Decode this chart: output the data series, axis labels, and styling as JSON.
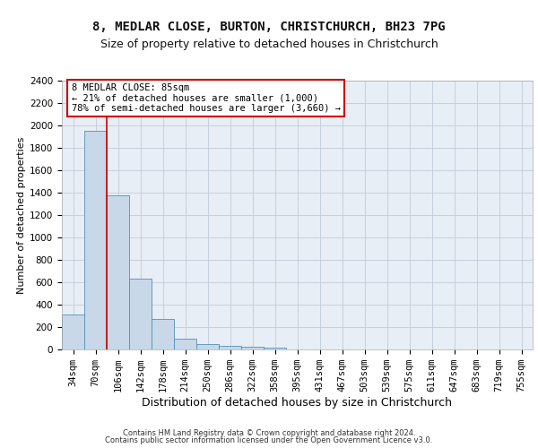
{
  "title1": "8, MEDLAR CLOSE, BURTON, CHRISTCHURCH, BH23 7PG",
  "title2": "Size of property relative to detached houses in Christchurch",
  "xlabel": "Distribution of detached houses by size in Christchurch",
  "ylabel": "Number of detached properties",
  "footer1": "Contains HM Land Registry data © Crown copyright and database right 2024.",
  "footer2": "Contains public sector information licensed under the Open Government Licence v3.0.",
  "bar_labels": [
    "34sqm",
    "70sqm",
    "106sqm",
    "142sqm",
    "178sqm",
    "214sqm",
    "250sqm",
    "286sqm",
    "322sqm",
    "358sqm",
    "395sqm",
    "431sqm",
    "467sqm",
    "503sqm",
    "539sqm",
    "575sqm",
    "611sqm",
    "647sqm",
    "683sqm",
    "719sqm",
    "755sqm"
  ],
  "bar_values": [
    315,
    1950,
    1380,
    630,
    270,
    95,
    47,
    30,
    25,
    20,
    0,
    0,
    0,
    0,
    0,
    0,
    0,
    0,
    0,
    0,
    0
  ],
  "bar_color": "#c8d8e8",
  "bar_edge_color": "#5090b8",
  "bar_edge_width": 0.6,
  "red_line_x": 1.5,
  "annotation_line1": "8 MEDLAR CLOSE: 85sqm",
  "annotation_line2": "← 21% of detached houses are smaller (1,000)",
  "annotation_line3": "78% of semi-detached houses are larger (3,660) →",
  "annotation_box_color": "#ffffff",
  "annotation_box_edge": "#cc0000",
  "red_line_color": "#cc0000",
  "ylim": [
    0,
    2400
  ],
  "yticks": [
    0,
    200,
    400,
    600,
    800,
    1000,
    1200,
    1400,
    1600,
    1800,
    2000,
    2200,
    2400
  ],
  "grid_color": "#c0ccda",
  "background_color": "#e8eef5",
  "title1_fontsize": 10,
  "title2_fontsize": 9,
  "xlabel_fontsize": 9,
  "ylabel_fontsize": 8,
  "tick_fontsize": 7.5,
  "footer_fontsize": 6,
  "annotation_fontsize": 7.5
}
